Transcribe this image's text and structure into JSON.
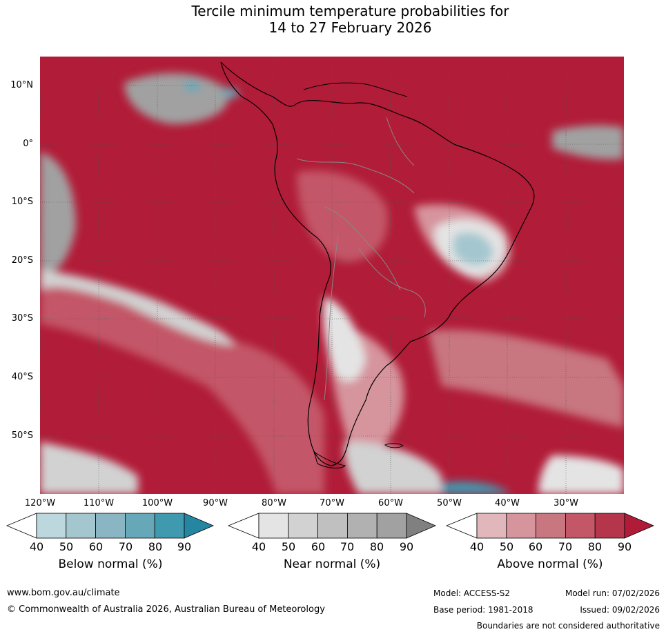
{
  "title_line1": "Tercile minimum temperature probabilities for",
  "title_line2": "14 to 27 February 2026",
  "lat_labels": [
    "10°N",
    "0°",
    "10°S",
    "20°S",
    "30°S",
    "40°S",
    "50°S"
  ],
  "lon_labels": [
    "120°W",
    "110°W",
    "100°W",
    "90°W",
    "80°W",
    "70°W",
    "60°W",
    "50°W",
    "40°W",
    "30°W"
  ],
  "colorbars": [
    {
      "label": "Below normal (%)",
      "ticks": [
        "40",
        "50",
        "60",
        "70",
        "80",
        "90"
      ],
      "colors": [
        "#ffffff",
        "#bcd7dd",
        "#a4c7cf",
        "#89b6c2",
        "#67a8b8",
        "#3f9ab0",
        "#2486a0"
      ]
    },
    {
      "label": "Near normal (%)",
      "ticks": [
        "40",
        "50",
        "60",
        "70",
        "80",
        "90"
      ],
      "colors": [
        "#ffffff",
        "#e4e4e4",
        "#d2d2d2",
        "#c0c0c0",
        "#b1b1b1",
        "#a1a1a1",
        "#808080"
      ]
    },
    {
      "label": "Above normal (%)",
      "ticks": [
        "40",
        "50",
        "60",
        "70",
        "80",
        "90"
      ],
      "colors": [
        "#ffffff",
        "#e2b7bc",
        "#d6949d",
        "#c87680",
        "#c35767",
        "#b5364b",
        "#b01c38"
      ]
    }
  ],
  "footer": {
    "website": "www.bom.gov.au/climate",
    "copyright": "© Commonwealth of Australia 2026, Australian Bureau of Meteorology",
    "model": "Model: ACCESS-S2",
    "base_period": "Base period: 1981-2018",
    "model_run": "Model run: 07/02/2026",
    "issued": "Issued: 09/02/2026",
    "disclaimer": "Boundaries are not considered authoritative"
  }
}
